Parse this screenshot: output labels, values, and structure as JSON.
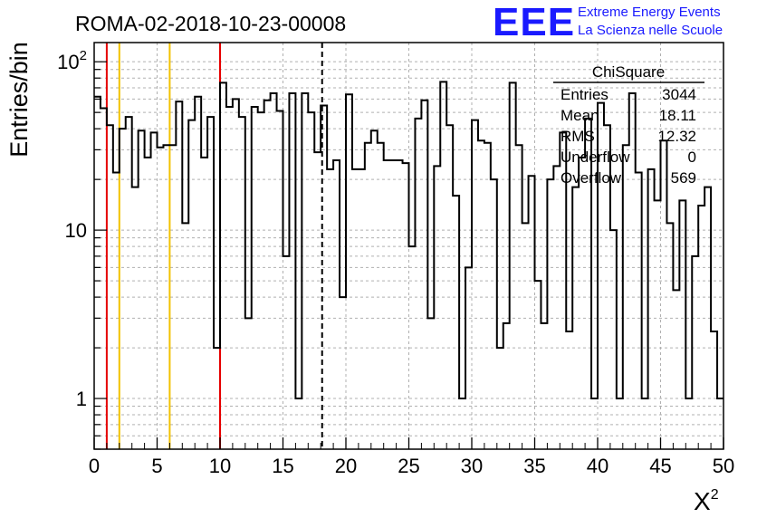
{
  "header": {
    "run_title": "ROMA-02-2018-10-23-00008",
    "logo_text": "EEE",
    "logo_line1": "Extreme Energy Events",
    "logo_line2": "La Scienza nelle Scuole",
    "logo_color": "#1a1aff"
  },
  "stats_box": {
    "title": "ChiSquare",
    "rows": [
      {
        "label": "Entries",
        "value": "3044"
      },
      {
        "label": "Mean",
        "value": "18.11"
      },
      {
        "label": "RMS",
        "value": "12.32"
      },
      {
        "label": "Underflow",
        "value": "0"
      },
      {
        "label": "Overflow",
        "value": "569"
      }
    ]
  },
  "chart_data": {
    "type": "histogram",
    "ylabel": "Entries/bin",
    "xlabel": "X",
    "xlabel_superscript": "2",
    "xlim": [
      0,
      50
    ],
    "ylim": [
      0.5,
      130
    ],
    "yscale": "log",
    "grid": true,
    "bin_width": 0.5,
    "x_ticks": [
      "0",
      "5",
      "10",
      "15",
      "20",
      "25",
      "30",
      "35",
      "40",
      "45",
      "50"
    ],
    "y_ticks": [
      "1",
      "10",
      "10²"
    ],
    "values": [
      62,
      53,
      42,
      22,
      40,
      47,
      18,
      39,
      27,
      38,
      31,
      32,
      32,
      58,
      11,
      45,
      62,
      27,
      47,
      2,
      75,
      54,
      60,
      47,
      3,
      54,
      50,
      59,
      65,
      51,
      7,
      65,
      1,
      65,
      50,
      29,
      55,
      23,
      26,
      4,
      64,
      23,
      23,
      33,
      39,
      33,
      26,
      26,
      26,
      25,
      8,
      46,
      59,
      3,
      24,
      76,
      42,
      16,
      1,
      6,
      45,
      34,
      33,
      20,
      2,
      2.8,
      75,
      32,
      11,
      21,
      5,
      2.8,
      20,
      24,
      38,
      2.5,
      18,
      27,
      46,
      1,
      57,
      42,
      10,
      1,
      32,
      65,
      22,
      1,
      23,
      15,
      34,
      11,
      4.4,
      15,
      1,
      7,
      14,
      18,
      2.5,
      1
    ],
    "reference_lines": [
      {
        "x": 1,
        "color": "#e60000",
        "style": "solid"
      },
      {
        "x": 2,
        "color": "#f2c200",
        "style": "solid"
      },
      {
        "x": 6,
        "color": "#f2c200",
        "style": "solid"
      },
      {
        "x": 10,
        "color": "#e60000",
        "style": "solid"
      },
      {
        "x": 18.11,
        "color": "#000000",
        "style": "dashed"
      }
    ]
  }
}
